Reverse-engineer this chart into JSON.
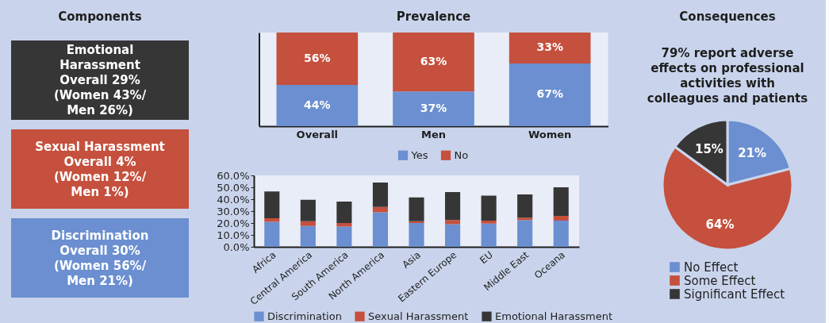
{
  "chart_data": [
    {
      "type": "other",
      "title": "Components",
      "annotations": [
        "Emotional Harassment",
        "Overall 29% (Women 43%/ Men 26%)",
        "Sexual Harassment",
        "Overall 4% (Women 12%/ Men 1%)",
        "Discrimination",
        "Overall 30% (Women 56%/ Men 21%)"
      ],
      "colors": [
        "#363636",
        "#c5503d",
        "#6b8fd0"
      ]
    },
    {
      "type": "bar",
      "title": "Prevalence",
      "categories": [
        "Overall",
        "Men",
        "Women"
      ],
      "stacked": true,
      "legend": "bottom",
      "tick_labels": "x",
      "series": [
        {
          "name": "Yes",
          "color": "#6b8fd0",
          "values": [
            44,
            37,
            67
          ],
          "value_labels": [
            "44%",
            "37%",
            "67%"
          ]
        },
        {
          "name": "No",
          "color": "#c5503d",
          "values": [
            56,
            63,
            33
          ],
          "value_labels": [
            "56%",
            "63%",
            "33%"
          ]
        }
      ]
    },
    {
      "type": "bar",
      "categories": [
        "Africa",
        "Central America",
        "South America",
        "North America",
        "Asia",
        "Eastern Europe",
        "EU",
        "Middle East",
        "Oceana"
      ],
      "stacked": true,
      "legend": "bottom",
      "ylim": [
        0,
        60
      ],
      "yticks": [
        {
          "value": 0,
          "label": "0.0%"
        },
        {
          "value": 10,
          "label": "10.0%"
        },
        {
          "value": 20,
          "label": "20.0%"
        },
        {
          "value": 30,
          "label": "30.0%"
        },
        {
          "value": 40,
          "label": "40.0%"
        },
        {
          "value": 50,
          "label": "50.0%"
        },
        {
          "value": 60,
          "label": "60.0%"
        }
      ],
      "series": [
        {
          "name": "Discrimination",
          "color": "#6b8fd0",
          "values": [
            21,
            17.5,
            17,
            29,
            20,
            19,
            19.5,
            22.5,
            22
          ]
        },
        {
          "name": "Sexual Harassment",
          "color": "#c5503d",
          "values": [
            3,
            4,
            3,
            4.5,
            1.5,
            3.5,
            2.5,
            2,
            4
          ]
        },
        {
          "name": "Emotional Harassment",
          "color": "#363636",
          "values": [
            22.5,
            18,
            18,
            20.5,
            20,
            23.5,
            21,
            19.5,
            24
          ]
        }
      ]
    },
    {
      "type": "pie",
      "title": "Consequences",
      "subtitle": "79% report adverse effects on professional activities with colleagues and patients",
      "categories": [
        "No Effect",
        "Some Effect",
        "Significant Effect"
      ],
      "values": [
        21,
        64,
        15
      ],
      "value_labels": [
        "21%",
        "64%",
        "15%"
      ],
      "colors": [
        "#6b8fd0",
        "#c5503d",
        "#363636"
      ],
      "legend": "bottom"
    }
  ]
}
